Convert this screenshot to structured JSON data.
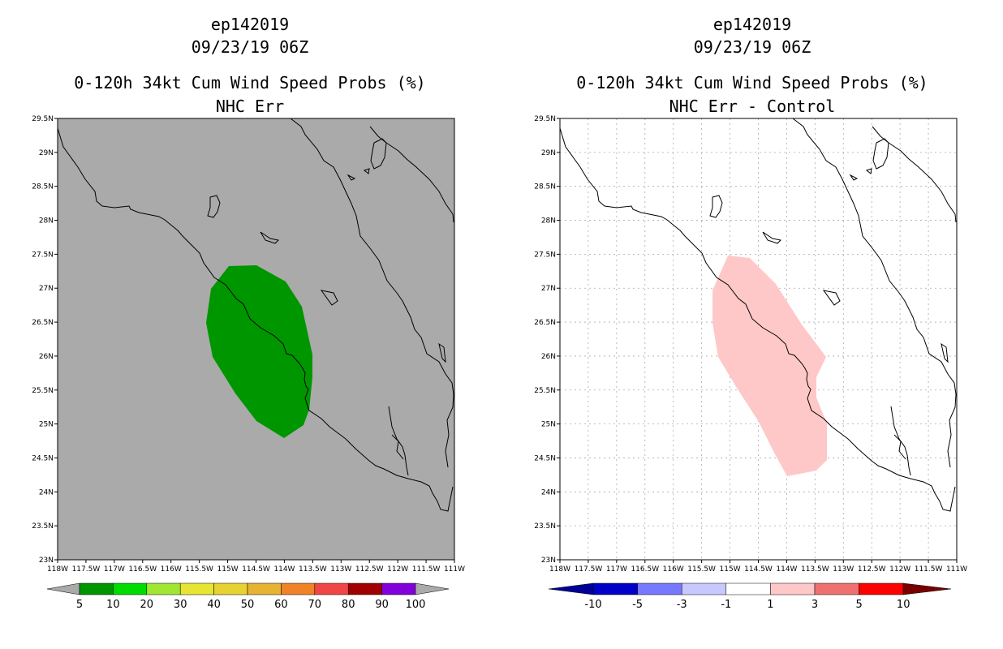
{
  "panels": [
    {
      "storm_id": "ep142019",
      "datetime": "09/23/19 06Z",
      "title": "0-120h 34kt Cum Wind Speed Probs (%)",
      "subtitle": "NHC Err",
      "background_color": "#aaaaaa",
      "swath_color": "#009600",
      "colorbar_labels": [
        "5",
        "10",
        "20",
        "30",
        "40",
        "50",
        "60",
        "70",
        "80",
        "90",
        "100"
      ],
      "colorbar_colors": [
        "#009600",
        "#00dc00",
        "#a0e632",
        "#e6e632",
        "#e6d232",
        "#e6b432",
        "#f08228",
        "#f04646",
        "#a00000",
        "#8200dc"
      ]
    },
    {
      "storm_id": "ep142019",
      "datetime": "09/23/19 06Z",
      "title": "0-120h 34kt Cum Wind Speed Probs (%)",
      "subtitle": "NHC Err - Control",
      "background_color": "#ffffff",
      "swath_color": "#ffc8c8",
      "colorbar_labels": [
        "-10",
        "-5",
        "-3",
        "-1",
        "1",
        "3",
        "5",
        "10"
      ],
      "colorbar_colors": [
        "#0000c8",
        "#7878ff",
        "#c8c8ff",
        "#ffffff",
        "#ffc8c8",
        "#f07070",
        "#ff0000"
      ],
      "colorbar_end_low": "#000096",
      "colorbar_end_high": "#780000"
    }
  ],
  "axes": {
    "lat_labels": [
      "23N",
      "23.5N",
      "24N",
      "24.5N",
      "25N",
      "25.5N",
      "26N",
      "26.5N",
      "27N",
      "27.5N",
      "28N",
      "28.5N",
      "29N",
      "29.5N"
    ],
    "lon_labels": [
      "118W",
      "117.5W",
      "117W",
      "116.5W",
      "116W",
      "115.5W",
      "115W",
      "114.5W",
      "114W",
      "113.5W",
      "113W",
      "112.5W",
      "112W",
      "111.5W",
      "111W"
    ]
  }
}
